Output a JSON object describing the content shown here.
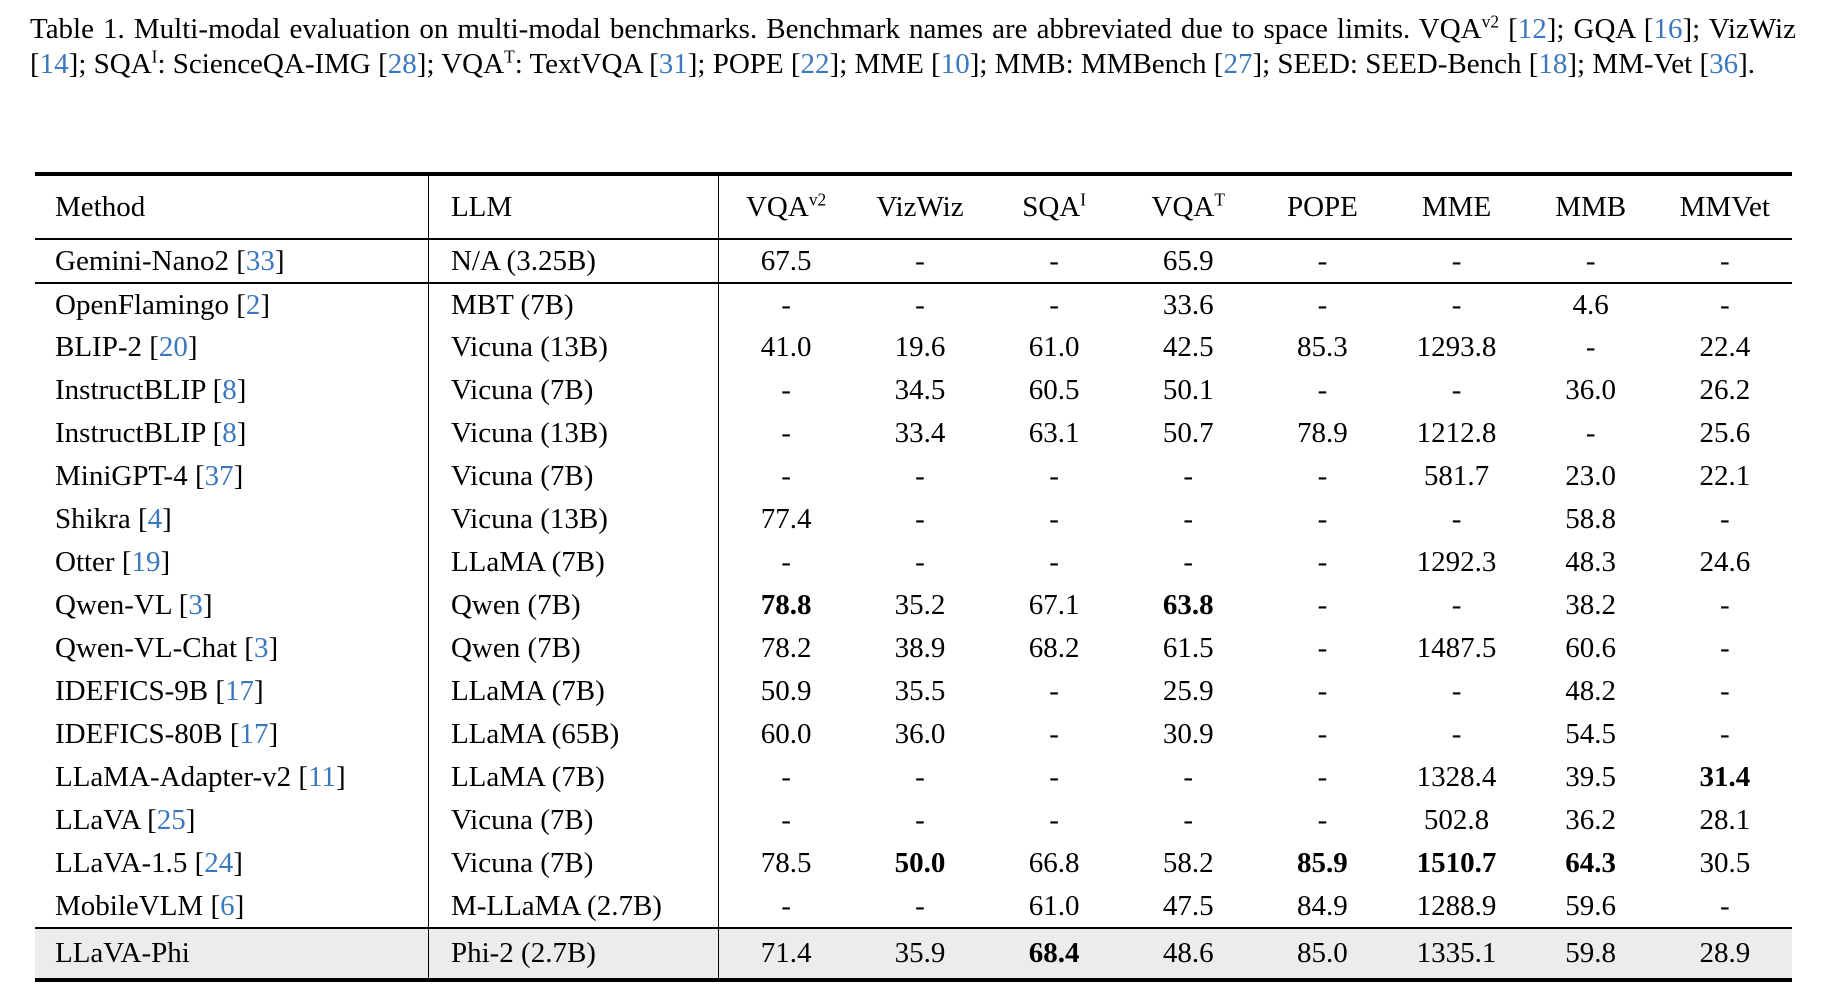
{
  "accent_citation_color": "#3b78be",
  "highlight_row_color": "#ececec",
  "caption": {
    "segments": [
      {
        "t": "Table 1. Multi-modal evaluation on multi-modal benchmarks. Benchmark names are abbreviated due to space limits. VQA"
      },
      {
        "s": "v2"
      },
      {
        "t": " ["
      },
      {
        "c": "12"
      },
      {
        "t": "]; GQA ["
      },
      {
        "c": "16"
      },
      {
        "t": "]; VizWiz ["
      },
      {
        "c": "14"
      },
      {
        "t": "]; SQA"
      },
      {
        "s": "I"
      },
      {
        "t": ": ScienceQA-IMG ["
      },
      {
        "c": "28"
      },
      {
        "t": "]; VQA"
      },
      {
        "s": "T"
      },
      {
        "t": ": TextVQA ["
      },
      {
        "c": "31"
      },
      {
        "t": "]; POPE ["
      },
      {
        "c": "22"
      },
      {
        "t": "]; MME ["
      },
      {
        "c": "10"
      },
      {
        "t": "]; MMB: MMBench ["
      },
      {
        "c": "27"
      },
      {
        "t": "]; SEED: SEED-Bench ["
      },
      {
        "c": "18"
      },
      {
        "t": "]; MM-Vet ["
      },
      {
        "c": "36"
      },
      {
        "t": "]."
      }
    ]
  },
  "chart_data": {
    "type": "table",
    "title": "Table 1. Multi-modal evaluation on multi-modal benchmarks",
    "columns": [
      {
        "label": "Method",
        "sup": "",
        "align": "left"
      },
      {
        "label": "LLM",
        "sup": "",
        "align": "left"
      },
      {
        "label": "VQA",
        "sup": "v2",
        "align": "center"
      },
      {
        "label": "VizWiz",
        "sup": "",
        "align": "center"
      },
      {
        "label": "SQA",
        "sup": "I",
        "align": "center"
      },
      {
        "label": "VQA",
        "sup": "T",
        "align": "center"
      },
      {
        "label": "POPE",
        "sup": "",
        "align": "center"
      },
      {
        "label": "MME",
        "sup": "",
        "align": "center"
      },
      {
        "label": "MMB",
        "sup": "",
        "align": "center"
      },
      {
        "label": "MMVet",
        "sup": "",
        "align": "center"
      }
    ],
    "rows": [
      {
        "method": "Gemini-Nano2",
        "cite": "33",
        "llm": "N/A (3.25B)",
        "vals": [
          "67.5",
          "-",
          "-",
          "65.9",
          "-",
          "-",
          "-",
          "-"
        ],
        "bold": [],
        "section_end": true,
        "first_section": true
      },
      {
        "method": "OpenFlamingo",
        "cite": "2",
        "llm": "MBT (7B)",
        "vals": [
          "-",
          "-",
          "-",
          "33.6",
          "-",
          "-",
          "4.6",
          "-"
        ],
        "bold": []
      },
      {
        "method": "BLIP-2",
        "cite": "20",
        "llm": "Vicuna (13B)",
        "vals": [
          "41.0",
          "19.6",
          "61.0",
          "42.5",
          "85.3",
          "1293.8",
          "-",
          "22.4"
        ],
        "bold": []
      },
      {
        "method": "InstructBLIP",
        "cite": "8",
        "llm": "Vicuna (7B)",
        "vals": [
          "-",
          "34.5",
          "60.5",
          "50.1",
          "-",
          "-",
          "36.0",
          "26.2"
        ],
        "bold": []
      },
      {
        "method": "InstructBLIP",
        "cite": "8",
        "llm": "Vicuna (13B)",
        "vals": [
          "-",
          "33.4",
          "63.1",
          "50.7",
          "78.9",
          "1212.8",
          "-",
          "25.6"
        ],
        "bold": []
      },
      {
        "method": "MiniGPT-4",
        "cite": "37",
        "llm": "Vicuna (7B)",
        "vals": [
          "-",
          "-",
          "-",
          "-",
          "-",
          "581.7",
          "23.0",
          "22.1"
        ],
        "bold": []
      },
      {
        "method": "Shikra",
        "cite": "4",
        "llm": "Vicuna (13B)",
        "vals": [
          "77.4",
          "-",
          "-",
          "-",
          "-",
          "-",
          "58.8",
          "-"
        ],
        "bold": []
      },
      {
        "method": "Otter",
        "cite": "19",
        "llm": "LLaMA (7B)",
        "vals": [
          "-",
          "-",
          "-",
          "-",
          "-",
          "1292.3",
          "48.3",
          "24.6"
        ],
        "bold": []
      },
      {
        "method": "Qwen-VL",
        "cite": "3",
        "llm": "Qwen (7B)",
        "vals": [
          "78.8",
          "35.2",
          "67.1",
          "63.8",
          "-",
          "-",
          "38.2",
          "-"
        ],
        "bold": [
          0,
          3
        ]
      },
      {
        "method": "Qwen-VL-Chat",
        "cite": "3",
        "llm": "Qwen (7B)",
        "vals": [
          "78.2",
          "38.9",
          "68.2",
          "61.5",
          "-",
          "1487.5",
          "60.6",
          "-"
        ],
        "bold": []
      },
      {
        "method": "IDEFICS-9B",
        "cite": "17",
        "llm": "LLaMA (7B)",
        "vals": [
          "50.9",
          "35.5",
          "-",
          "25.9",
          "-",
          "-",
          "48.2",
          "-"
        ],
        "bold": []
      },
      {
        "method": "IDEFICS-80B",
        "cite": "17",
        "llm": "LLaMA (65B)",
        "vals": [
          "60.0",
          "36.0",
          "-",
          "30.9",
          "-",
          "-",
          "54.5",
          "-"
        ],
        "bold": []
      },
      {
        "method": "LLaMA-Adapter-v2",
        "cite": "11",
        "llm": "LLaMA (7B)",
        "vals": [
          "-",
          "-",
          "-",
          "-",
          "-",
          "1328.4",
          "39.5",
          "31.4"
        ],
        "bold": [
          7
        ]
      },
      {
        "method": "LLaVA",
        "cite": "25",
        "llm": "Vicuna (7B)",
        "vals": [
          "-",
          "-",
          "-",
          "-",
          "-",
          "502.8",
          "36.2",
          "28.1"
        ],
        "bold": []
      },
      {
        "method": "LLaVA-1.5",
        "cite": "24",
        "llm": "Vicuna (7B)",
        "vals": [
          "78.5",
          "50.0",
          "66.8",
          "58.2",
          "85.9",
          "1510.7",
          "64.3",
          "30.5"
        ],
        "bold": [
          1,
          4,
          5,
          6
        ]
      },
      {
        "method": "MobileVLM",
        "cite": "6",
        "llm": "M-LLaMA (2.7B)",
        "vals": [
          "-",
          "-",
          "61.0",
          "47.5",
          "84.9",
          "1288.9",
          "59.6",
          "-"
        ],
        "bold": [],
        "section_end": true
      },
      {
        "method": "LLaVA-Phi",
        "cite": "",
        "llm": "Phi-2 (2.7B)",
        "vals": [
          "71.4",
          "35.9",
          "68.4",
          "48.6",
          "85.0",
          "1335.1",
          "59.8",
          "28.9"
        ],
        "bold": [
          2
        ],
        "highlight": true
      }
    ]
  }
}
